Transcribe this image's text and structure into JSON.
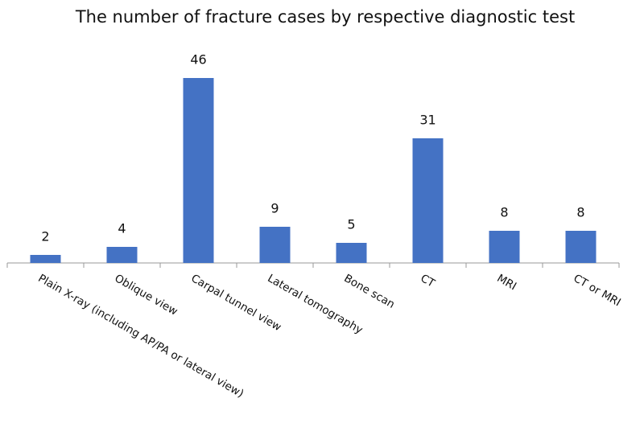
{
  "chart_data": {
    "type": "bar",
    "title": "The number of fracture cases by respective diagnostic test",
    "categories": [
      "Plain X-ray (including AP/PA or lateral view)",
      "Oblique view",
      "Carpal tunnel view",
      "Lateral tomography",
      "Bone scan",
      "CT",
      "MRI",
      "CT or MRI"
    ],
    "values": [
      2,
      4,
      46,
      9,
      5,
      31,
      8,
      8
    ],
    "color": "#4472c4"
  }
}
